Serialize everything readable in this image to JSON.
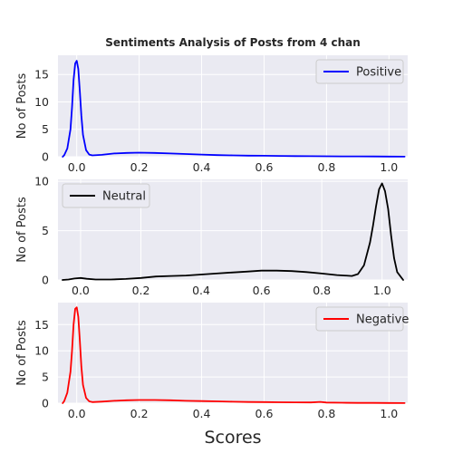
{
  "figure": {
    "title": "Sentiments Analysis of Posts from 4 chan",
    "xlabel": "Scores"
  },
  "chart_data": [
    {
      "type": "line",
      "title": "Sentiments Analysis of Posts from 4 chan",
      "xlabel": "",
      "ylabel": "No of Posts",
      "xlim": [
        -0.06,
        1.06
      ],
      "ylim": [
        0,
        18.5
      ],
      "xticks": [
        0.0,
        0.2,
        0.4,
        0.6,
        0.8,
        1.0
      ],
      "xtick_labels": [
        "0.0",
        "0.2",
        "0.4",
        "0.6",
        "0.8",
        "1.0"
      ],
      "yticks": [
        0,
        5,
        10,
        15
      ],
      "legend_position": "top-right",
      "grid": true,
      "series": [
        {
          "name": "Positive",
          "color": "#0000ff",
          "x": [
            -0.045,
            -0.04,
            -0.03,
            -0.02,
            -0.015,
            -0.01,
            -0.005,
            0.0,
            0.005,
            0.01,
            0.015,
            0.02,
            0.03,
            0.04,
            0.05,
            0.08,
            0.12,
            0.16,
            0.2,
            0.25,
            0.3,
            0.35,
            0.4,
            0.45,
            0.5,
            0.55,
            0.6,
            0.65,
            0.7,
            0.75,
            0.8,
            0.85,
            0.9,
            0.95,
            1.0,
            1.05
          ],
          "y": [
            0.0,
            0.3,
            1.5,
            5.0,
            9.0,
            14.0,
            17.0,
            17.5,
            16.0,
            12.0,
            7.5,
            4.0,
            1.2,
            0.4,
            0.25,
            0.35,
            0.6,
            0.7,
            0.75,
            0.7,
            0.6,
            0.5,
            0.4,
            0.3,
            0.25,
            0.2,
            0.18,
            0.15,
            0.12,
            0.1,
            0.08,
            0.07,
            0.06,
            0.05,
            0.04,
            0.02
          ]
        }
      ]
    },
    {
      "type": "line",
      "title": "",
      "xlabel": "",
      "ylabel": "No of Posts",
      "xlim": [
        -0.075,
        1.085
      ],
      "ylim": [
        0,
        10.2
      ],
      "xticks": [
        0.0,
        0.2,
        0.4,
        0.6,
        0.8,
        1.0
      ],
      "xtick_labels": [
        "0.0",
        "0.2",
        "0.4",
        "0.6",
        "0.8",
        "1.0"
      ],
      "yticks": [
        0,
        5,
        10
      ],
      "legend_position": "top-left",
      "grid": true,
      "series": [
        {
          "name": "Neutral",
          "color": "#000000",
          "x": [
            -0.06,
            -0.04,
            -0.02,
            0.0,
            0.02,
            0.05,
            0.1,
            0.15,
            0.2,
            0.25,
            0.3,
            0.35,
            0.4,
            0.45,
            0.5,
            0.55,
            0.6,
            0.65,
            0.7,
            0.75,
            0.8,
            0.85,
            0.9,
            0.92,
            0.94,
            0.96,
            0.97,
            0.98,
            0.99,
            1.0,
            1.01,
            1.02,
            1.03,
            1.04,
            1.05,
            1.07
          ],
          "y": [
            0.0,
            0.05,
            0.15,
            0.2,
            0.12,
            0.05,
            0.05,
            0.1,
            0.2,
            0.35,
            0.4,
            0.45,
            0.55,
            0.65,
            0.75,
            0.85,
            0.95,
            0.95,
            0.9,
            0.8,
            0.65,
            0.5,
            0.4,
            0.6,
            1.5,
            3.8,
            5.5,
            7.5,
            9.2,
            9.8,
            9.0,
            7.2,
            4.5,
            2.2,
            0.8,
            0.0
          ]
        }
      ]
    },
    {
      "type": "line",
      "title": "",
      "xlabel": "Scores",
      "ylabel": "No of Posts",
      "xlim": [
        -0.06,
        1.06
      ],
      "ylim": [
        0,
        19.2
      ],
      "xticks": [
        0.0,
        0.2,
        0.4,
        0.6,
        0.8,
        1.0
      ],
      "xtick_labels": [
        "0.0",
        "0.2",
        "0.4",
        "0.6",
        "0.8",
        "1.0"
      ],
      "yticks": [
        0,
        5,
        10,
        15
      ],
      "legend_position": "top-right",
      "grid": true,
      "series": [
        {
          "name": "Negative",
          "color": "#ff0000",
          "x": [
            -0.045,
            -0.04,
            -0.03,
            -0.02,
            -0.015,
            -0.01,
            -0.005,
            0.0,
            0.005,
            0.01,
            0.015,
            0.02,
            0.03,
            0.04,
            0.05,
            0.08,
            0.12,
            0.16,
            0.2,
            0.25,
            0.3,
            0.35,
            0.4,
            0.45,
            0.5,
            0.55,
            0.6,
            0.65,
            0.7,
            0.75,
            0.78,
            0.8,
            0.85,
            0.9,
            0.95,
            1.0,
            1.05
          ],
          "y": [
            0.0,
            0.4,
            2.0,
            6.0,
            10.0,
            15.0,
            18.0,
            18.3,
            16.5,
            12.0,
            7.0,
            3.5,
            1.0,
            0.35,
            0.2,
            0.3,
            0.45,
            0.55,
            0.6,
            0.6,
            0.55,
            0.45,
            0.4,
            0.35,
            0.28,
            0.22,
            0.2,
            0.18,
            0.15,
            0.14,
            0.25,
            0.12,
            0.08,
            0.06,
            0.05,
            0.04,
            0.02
          ]
        }
      ]
    }
  ]
}
